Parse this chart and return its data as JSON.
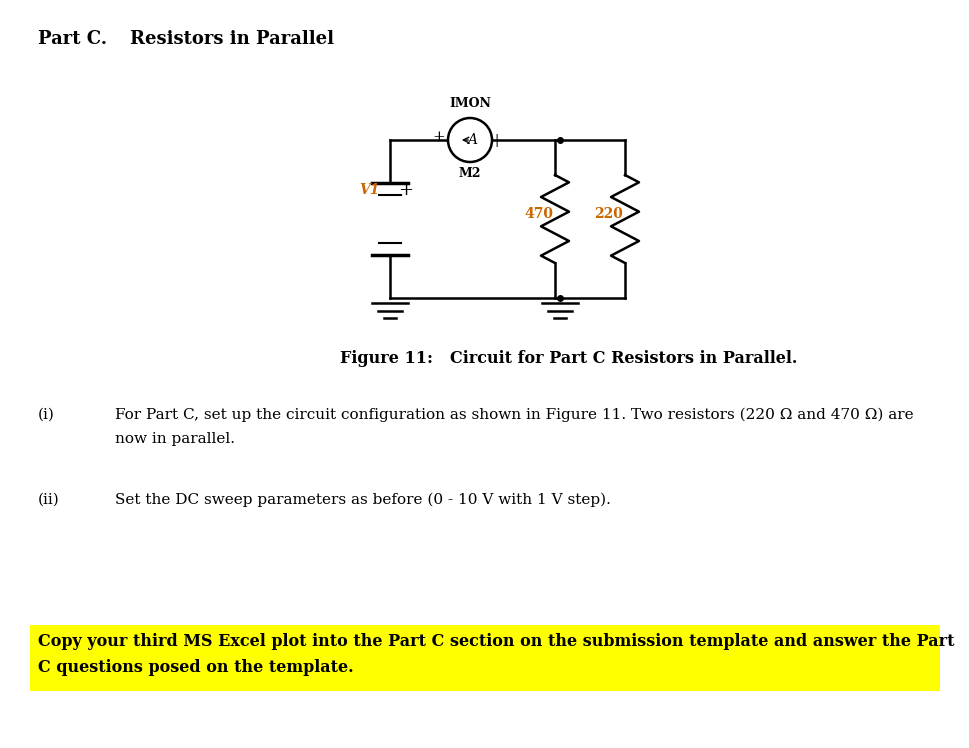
{
  "bg_color": "#ffffff",
  "text_color": "#000000",
  "orange_color": "#cc6600",
  "highlight_color": "#ffff00",
  "title_part": "Part C.",
  "title_rest": "Resistors in Parallel",
  "imon_label": "IMON",
  "m2_label": "M2",
  "v1_label": "V1",
  "r1_label": "470",
  "r2_label": "220",
  "figure_caption_bold": "Figure 11:",
  "figure_caption_rest": "Circuit for Part C Resistors in Parallel.",
  "text_i_num": "(i)",
  "text_i_body": "For Part C, set up the circuit configuration as shown in Figure 11. Two resistors (220 Ω and 470 Ω) are",
  "text_i_body2": "now in parallel.",
  "text_ii_num": "(ii)",
  "text_ii_body": "Set the DC sweep parameters as before (0 - 10 V with 1 V step).",
  "highlight_line1": "Copy your third MS Excel plot into the Part C section on the submission template and answer the Part",
  "highlight_line2": "C questions posed on the template.",
  "lw": 1.8
}
